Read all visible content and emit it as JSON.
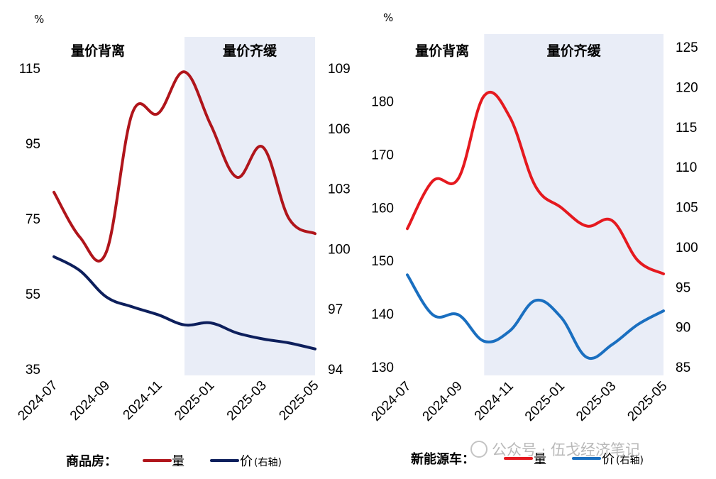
{
  "chart_data": [
    {
      "type": "line",
      "title": "",
      "unit_label": "%",
      "x": [
        "2024-07",
        "2024-08",
        "2024-09",
        "2024-10",
        "2024-11",
        "2024-12",
        "2025-01",
        "2025-02",
        "2025-03",
        "2025-04",
        "2025-05"
      ],
      "x_ticks": [
        "2024-07",
        "2024-09",
        "2024-11",
        "2025-01",
        "2025-03",
        "2025-05"
      ],
      "ylim_left": [
        35,
        115
      ],
      "yticks_left": [
        35,
        55,
        75,
        95,
        115
      ],
      "ylim_right": [
        94,
        109
      ],
      "yticks_right": [
        94,
        97,
        100,
        103,
        106,
        109
      ],
      "regions": [
        {
          "label": "量价背离",
          "x_start": "2024-07",
          "x_end": "2024-12",
          "shaded": false
        },
        {
          "label": "量价齐缓",
          "x_start": "2024-12",
          "x_end": "2025-05",
          "shaded": true,
          "color": "#e9edf7"
        }
      ],
      "legend_title": "商品房：",
      "series": [
        {
          "name": "量",
          "axis": "left",
          "color": "#b0151b",
          "values": [
            82,
            70,
            66,
            103,
            103,
            114,
            100,
            86,
            94,
            75,
            71
          ]
        },
        {
          "name": "价",
          "name_suffix": "(右轴)",
          "axis": "right",
          "color": "#0d1f5c",
          "values": [
            99.6,
            98.9,
            97.6,
            97.1,
            96.7,
            96.2,
            96.3,
            95.8,
            95.5,
            95.3,
            95.0
          ]
        }
      ]
    },
    {
      "type": "line",
      "title": "",
      "unit_label": "%",
      "x": [
        "2024-07",
        "2024-08",
        "2024-09",
        "2024-10",
        "2024-11",
        "2024-12",
        "2025-01",
        "2025-02",
        "2025-03",
        "2025-04",
        "2025-05"
      ],
      "x_ticks": [
        "2024-07",
        "2024-09",
        "2024-11",
        "2025-01",
        "2025-03",
        "2025-05"
      ],
      "ylim_left": [
        130,
        185
      ],
      "yticks_left": [
        130,
        140,
        150,
        160,
        170,
        180
      ],
      "ylim_right": [
        85,
        125
      ],
      "yticks_right": [
        85,
        90,
        95,
        100,
        105,
        110,
        115,
        120,
        125
      ],
      "regions": [
        {
          "label": "量价背离",
          "x_start": "2024-07",
          "x_end": "2024-10",
          "shaded": false
        },
        {
          "label": "量价齐缓",
          "x_start": "2024-10",
          "x_end": "2025-05",
          "shaded": true,
          "color": "#e9edf7"
        }
      ],
      "legend_title": "新能源车：",
      "series": [
        {
          "name": "量",
          "axis": "left",
          "color": "#e5191f",
          "values": [
            156,
            165,
            165.5,
            181,
            177,
            164,
            160,
            156.5,
            157.5,
            150,
            147.5
          ]
        },
        {
          "name": "价",
          "name_suffix": "(右轴)",
          "axis": "right",
          "color": "#1a6fc0",
          "values": [
            96.5,
            91.5,
            91.5,
            88.2,
            89.5,
            93.3,
            91.2,
            86.2,
            87.8,
            90.3,
            92
          ]
        }
      ]
    }
  ],
  "watermark": "公众号 · 伍戈经济笔记"
}
